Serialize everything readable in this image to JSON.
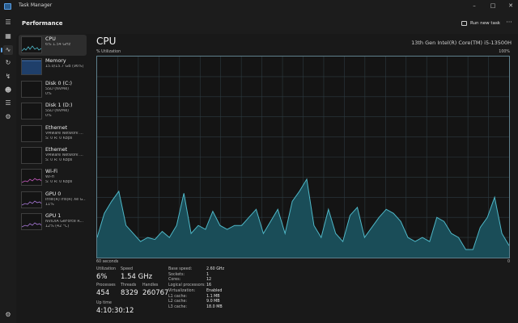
{
  "window": {
    "title": "Task Manager",
    "icon": "task-manager-icon",
    "controls": [
      "minimize",
      "maximize",
      "close"
    ]
  },
  "nav": {
    "icons": [
      "hamburger-icon",
      "processes-icon",
      "performance-icon",
      "app-history-icon",
      "startup-apps-icon",
      "users-icon",
      "details-icon",
      "services-icon"
    ],
    "active": "performance-icon",
    "settings_icon": "settings-icon"
  },
  "command_bar": {
    "page_title": "Performance",
    "run_new_task": "Run new task",
    "more": "···"
  },
  "sidebar": {
    "items": [
      {
        "name": "CPU",
        "sub1": "6%  1.54 GHz",
        "sub2": "",
        "color": "#4fb8c8",
        "selected": true
      },
      {
        "name": "Memory",
        "sub1": "15.0/15.7 GB (96%)",
        "sub2": "",
        "color": "#5b8fd6",
        "selected": false
      },
      {
        "name": "Disk 0 (C:)",
        "sub1": "SSD (NVMe)",
        "sub2": "0%",
        "color": "#6aa84f",
        "selected": false
      },
      {
        "name": "Disk 1 (D:)",
        "sub1": "SSD (NVMe)",
        "sub2": "0%",
        "color": "#6aa84f",
        "selected": false
      },
      {
        "name": "Ethernet",
        "sub1": "VMware Network ...",
        "sub2": "S: 0  R: 0 Kbps",
        "color": "#c99a4a",
        "selected": false
      },
      {
        "name": "Ethernet",
        "sub1": "VMware Network ...",
        "sub2": "S: 0  R: 0 Kbps",
        "color": "#c99a4a",
        "selected": false
      },
      {
        "name": "Wi-Fi",
        "sub1": "Wi-Fi",
        "sub2": "S: 0  R: 0 Kbps",
        "color": "#c85bc0",
        "selected": false
      },
      {
        "name": "GPU 0",
        "sub1": "Intel(R) Iris(R) Xe G...",
        "sub2": "11%",
        "color": "#a878d8",
        "selected": false
      },
      {
        "name": "GPU 1",
        "sub1": "NVIDIA GeForce R...",
        "sub2": "12% (42 °C)",
        "color": "#a878d8",
        "selected": false
      }
    ]
  },
  "cpu": {
    "title": "CPU",
    "model": "13th Gen Intel(R) Core(TM) i5-13500H",
    "util_label": "% Utilization",
    "util_max": "100%",
    "axis_left": "60 seconds",
    "axis_right": "0",
    "graph": {
      "line_color": "#4fb8c8",
      "fill_color": "#1a4d58",
      "grid_color": "#2c3a40",
      "y_range": [
        0,
        100
      ],
      "x_range_seconds": [
        60,
        0
      ],
      "values": [
        10,
        22,
        28,
        33,
        16,
        12,
        8,
        10,
        9,
        13,
        10,
        16,
        32,
        12,
        16,
        14,
        23,
        16,
        14,
        16,
        16,
        20,
        24,
        12,
        18,
        24,
        12,
        28,
        33,
        39,
        16,
        10,
        24,
        12,
        8,
        21,
        25,
        10,
        15,
        20,
        24,
        22,
        18,
        10,
        8,
        10,
        8,
        20,
        18,
        12,
        10,
        4,
        4,
        15,
        20,
        30,
        12,
        6
      ]
    },
    "stats": {
      "utilization_label": "Utilization",
      "utilization": "6%",
      "speed_label": "Speed",
      "speed": "1.54 GHz",
      "processes_label": "Processes",
      "processes": "454",
      "threads_label": "Threads",
      "threads": "8329",
      "handles_label": "Handles",
      "handles": "260767",
      "uptime_label": "Up time",
      "uptime": "4:10:30:12"
    },
    "specs": [
      {
        "label": "Base speed:",
        "value": "2.60 GHz"
      },
      {
        "label": "Sockets:",
        "value": "1"
      },
      {
        "label": "Cores:",
        "value": "12"
      },
      {
        "label": "Logical processors:",
        "value": "16"
      },
      {
        "label": "Virtualization:",
        "value": "Enabled"
      },
      {
        "label": "L1 cache:",
        "value": "1.1 MB"
      },
      {
        "label": "L2 cache:",
        "value": "9.0 MB"
      },
      {
        "label": "L3 cache:",
        "value": "18.0 MB"
      }
    ]
  }
}
